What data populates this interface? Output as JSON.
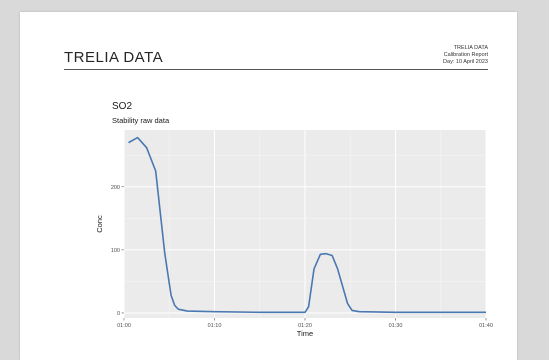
{
  "report": {
    "brand": "TRELIA DATA",
    "meta_line1": "TRELIA DATA",
    "meta_line2": "Calibration Report",
    "meta_line3": "Day: 10 April 2023"
  },
  "chart_data": {
    "type": "line",
    "title": "SO2",
    "subtitle": "Stability raw data",
    "xlabel": "Time",
    "ylabel": "Conc",
    "x_ticks": [
      "01:00",
      "01:10",
      "01:20",
      "01:30",
      "01:40"
    ],
    "y_ticks": [
      0,
      100,
      200
    ],
    "xlim": [
      0,
      40
    ],
    "ylim": [
      -8,
      290
    ],
    "grid": true,
    "panel_background": "#ebebeb",
    "line_color": "#4a78b0",
    "series": [
      {
        "x": [
          0.5,
          1.5,
          2.5,
          3.5,
          4.5,
          5.2,
          5.6,
          6.0,
          7.0,
          10,
          15,
          20,
          20.4,
          21.0,
          21.7,
          22.3,
          23.0,
          23.6,
          24.2,
          24.7,
          25.2,
          26.0,
          30,
          35,
          40
        ],
        "y": [
          270,
          278,
          262,
          225,
          95,
          28,
          12,
          6,
          3,
          2,
          1,
          1,
          10,
          70,
          93,
          94,
          91,
          70,
          40,
          15,
          4,
          2,
          1,
          1,
          1
        ]
      }
    ]
  }
}
